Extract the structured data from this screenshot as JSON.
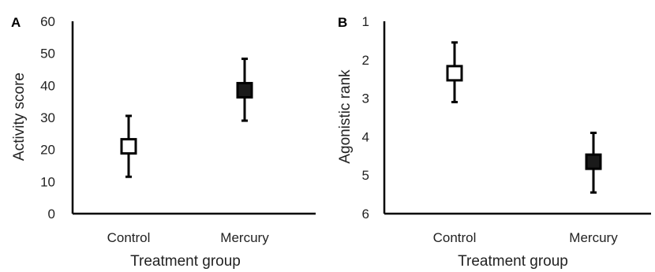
{
  "chart_data": [
    {
      "panel_label": "A",
      "type": "scatter",
      "categories": [
        "Control",
        "Mercury"
      ],
      "series": [
        {
          "points": [
            {
              "x": "Control",
              "y": 21,
              "err_low": 11.5,
              "err_high": 30.5,
              "fill": "#ffffff"
            },
            {
              "x": "Mercury",
              "y": 38.5,
              "err_low": 29,
              "err_high": 48.3,
              "fill": "#1a1a1a"
            }
          ]
        }
      ],
      "xlabel": "Treatment group",
      "ylabel": "Activity score",
      "ylim": [
        0,
        60
      ],
      "y_inverted": false,
      "yticks": [
        "0",
        "10",
        "20",
        "30",
        "40",
        "50",
        "60"
      ],
      "grid": false
    },
    {
      "panel_label": "B",
      "type": "scatter",
      "categories": [
        "Control",
        "Mercury"
      ],
      "series": [
        {
          "points": [
            {
              "x": "Control",
              "y": 2.35,
              "err_low": 3.1,
              "err_high": 1.55,
              "fill": "#ffffff"
            },
            {
              "x": "Mercury",
              "y": 4.65,
              "err_low": 5.45,
              "err_high": 3.9,
              "fill": "#1a1a1a"
            }
          ]
        }
      ],
      "xlabel": "Treatment group",
      "ylabel": "Agonistic rank",
      "ylim": [
        1,
        6
      ],
      "y_inverted": true,
      "yticks": [
        "1",
        "2",
        "3",
        "4",
        "5",
        "6"
      ],
      "grid": false
    }
  ]
}
